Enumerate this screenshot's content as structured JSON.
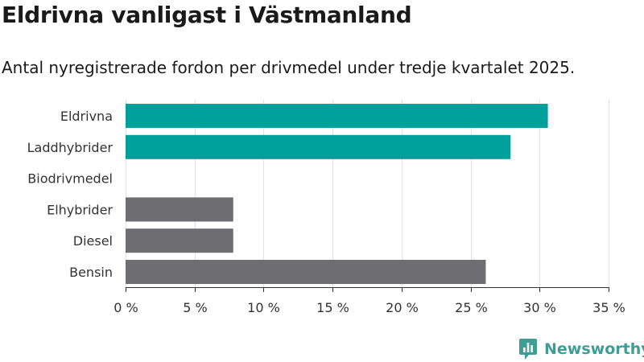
{
  "chart_data": {
    "type": "bar",
    "orientation": "horizontal",
    "title": "Eldrivna vanligast i Västmanland",
    "subtitle": "Antal nyregistrerade fordon per drivmedel under tredje kvartalet 2025.",
    "xlabel": "",
    "ylabel": "",
    "categories": [
      "Eldrivna",
      "Laddhybrider",
      "Biodrivmedel",
      "Elhybrider",
      "Diesel",
      "Bensin"
    ],
    "values": [
      30.6,
      27.9,
      0,
      7.8,
      7.8,
      26.1
    ],
    "bar_colors": [
      "#00a19a",
      "#00a19a",
      "#00a19a",
      "#6d6d72",
      "#6d6d72",
      "#6d6d72"
    ],
    "xlim": [
      0,
      35
    ],
    "x_ticks": [
      0,
      5,
      10,
      15,
      20,
      25,
      30,
      35
    ],
    "x_tick_labels": [
      "0 %",
      "5 %",
      "10 %",
      "15 %",
      "20 %",
      "25 %",
      "30 %",
      "35 %"
    ],
    "grid": true,
    "legend": "none"
  },
  "branding": {
    "name": "Newsworthy",
    "color": "#3e9e94",
    "icon": "chart-speech-bubble-icon"
  }
}
